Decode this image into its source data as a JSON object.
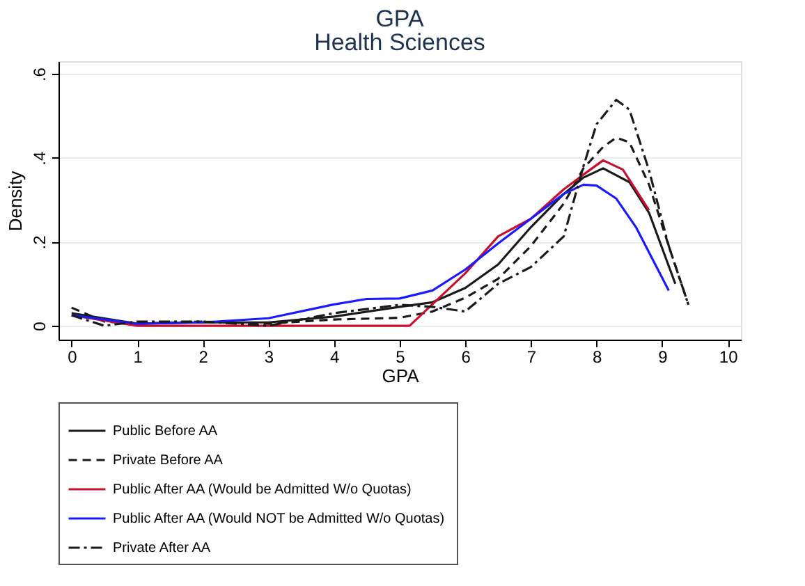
{
  "chart_data": {
    "type": "line",
    "title": "GPA",
    "subtitle": "Health Sciences",
    "xlabel": "GPA",
    "ylabel": "Density",
    "xlim": [
      -0.2,
      10.2
    ],
    "ylim": [
      -0.033,
      0.63
    ],
    "xticks": [
      0,
      1,
      2,
      3,
      4,
      5,
      6,
      7,
      8,
      9,
      10
    ],
    "yticks": [
      0,
      {
        "value": 0.2,
        "label": ".2"
      },
      {
        "value": 0.4,
        "label": ".4"
      },
      {
        "value": 0.6,
        "label": ".6"
      }
    ],
    "grid": "y",
    "legend": "bottom",
    "series": [
      {
        "name": "Public Before AA",
        "color": "#1a1a1a",
        "line_style": "solid",
        "x": [
          0,
          1,
          2,
          3,
          4,
          5,
          5.5,
          6,
          6.5,
          7,
          7.5,
          7.8,
          8.1,
          8.5,
          8.8,
          9.2
        ],
        "values": [
          0.03,
          0.005,
          0.008,
          0.008,
          0.022,
          0.045,
          0.056,
          0.09,
          0.146,
          0.235,
          0.314,
          0.353,
          0.375,
          0.342,
          0.269,
          0.1
        ]
      },
      {
        "name": "Private Before AA",
        "color": "#1a1a1a",
        "line_style": "dashed",
        "x": [
          0,
          0.5,
          1,
          2,
          3,
          4,
          5,
          5.5,
          6,
          6.5,
          7,
          7.5,
          7.8,
          8.1,
          8.3,
          8.5,
          8.8,
          9.1,
          9.4
        ],
        "values": [
          0.043,
          0.01,
          0.005,
          0.01,
          0.005,
          0.015,
          0.019,
          0.034,
          0.067,
          0.112,
          0.19,
          0.291,
          0.375,
          0.426,
          0.448,
          0.437,
          0.336,
          0.19,
          0.05
        ]
      },
      {
        "name": "Public After AA (Would be Admitted W/o Quotas)",
        "color": "#c8102e",
        "line_style": "solid",
        "x": [
          0,
          1,
          2,
          3,
          4,
          5,
          5.15,
          6,
          6.5,
          7,
          7.5,
          7.8,
          8.1,
          8.4,
          8.8
        ],
        "values": [
          0.025,
          0.0,
          0.0,
          0.0,
          0.0,
          0.0,
          0.0,
          0.125,
          0.213,
          0.255,
          0.325,
          0.36,
          0.394,
          0.372,
          0.275
        ]
      },
      {
        "name": "Public After AA (Would NOT be Admitted W/o Quotas)",
        "color": "#1a1aff",
        "line_style": "solid",
        "x": [
          0,
          1,
          2,
          3,
          4,
          4.5,
          5,
          5.5,
          6,
          6.5,
          7,
          7.5,
          7.8,
          8,
          8.3,
          8.6,
          9.1
        ],
        "values": [
          0.025,
          0.005,
          0.008,
          0.018,
          0.051,
          0.064,
          0.065,
          0.084,
          0.134,
          0.196,
          0.255,
          0.314,
          0.336,
          0.334,
          0.303,
          0.235,
          0.084
        ]
      },
      {
        "name": "Private After AA",
        "color": "#1a1a1a",
        "line_style": "dashdot",
        "x": [
          0,
          0.5,
          1,
          2,
          3,
          4,
          5,
          5.5,
          6,
          6.5,
          7,
          7.5,
          7.8,
          8,
          8.3,
          8.5,
          8.8,
          9.1,
          9.4
        ],
        "values": [
          0.025,
          0.0,
          0.01,
          0.01,
          0.0,
          0.03,
          0.05,
          0.045,
          0.034,
          0.1,
          0.14,
          0.213,
          0.38,
          0.48,
          0.538,
          0.515,
          0.37,
          0.19,
          0.05
        ]
      }
    ]
  }
}
